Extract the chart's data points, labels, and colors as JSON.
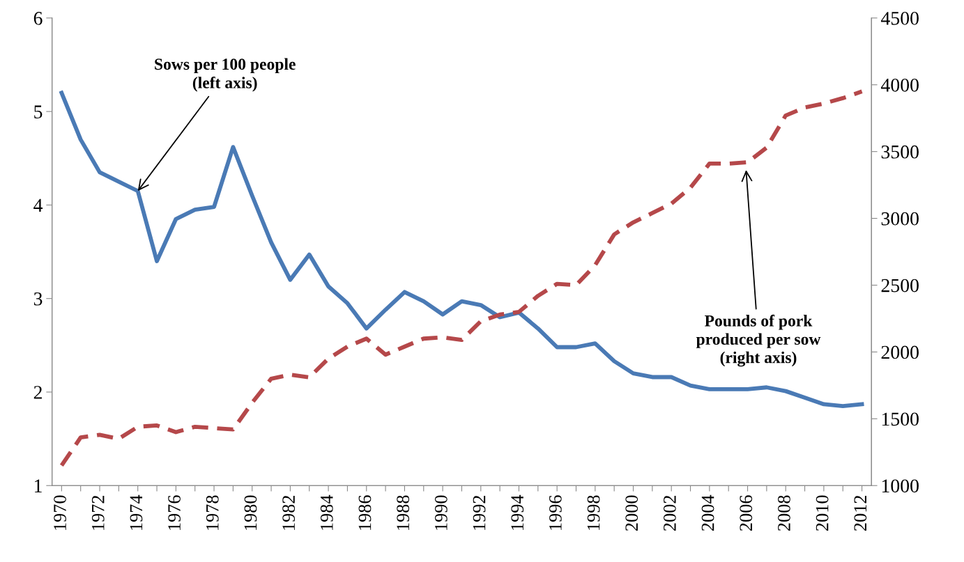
{
  "chart_data": {
    "type": "line",
    "categories": [
      "1970",
      null,
      "1972",
      null,
      "1974",
      null,
      "1976",
      null,
      "1978",
      null,
      "1980",
      null,
      "1982",
      null,
      "1984",
      null,
      "1986",
      null,
      "1988",
      null,
      "1990",
      null,
      "1992",
      null,
      "1994",
      null,
      "1996",
      null,
      "1998",
      null,
      "2000",
      null,
      "2002",
      null,
      "2004",
      null,
      "2006",
      null,
      "2008",
      null,
      "2010",
      null,
      "2012"
    ],
    "series": [
      {
        "color": "#4a7ab5",
        "line_style": "solid",
        "values": [
          5.2,
          4.7,
          4.35,
          4.25,
          4.15,
          3.4,
          3.85,
          3.95,
          3.98,
          4.62,
          4.1,
          3.6,
          3.2,
          3.47,
          3.13,
          2.95,
          2.68,
          2.88,
          3.07,
          2.97,
          2.83,
          2.97,
          2.93,
          2.8,
          2.85,
          2.68,
          2.48,
          2.48,
          2.52,
          2.33,
          2.2,
          2.16,
          2.16,
          2.07,
          2.03,
          2.03,
          2.03,
          2.05,
          2.01,
          1.94,
          1.87,
          1.85,
          1.87
        ]
      },
      {
        "color": "#b5484a",
        "line_style": "dashed",
        "axis": "y2",
        "values": [
          1150,
          1360,
          1380,
          1350,
          1440,
          1450,
          1400,
          1440,
          1430,
          1420,
          1620,
          1800,
          1830,
          1810,
          1950,
          2040,
          2100,
          1980,
          2040,
          2100,
          2110,
          2090,
          2230,
          2280,
          2300,
          2420,
          2510,
          2500,
          2650,
          2880,
          2970,
          3040,
          3110,
          3230,
          3410,
          3410,
          3420,
          3530,
          3770,
          3830,
          3860,
          3900,
          3950
        ]
      }
    ],
    "ylim": [
      1,
      6
    ],
    "yticks": [
      1,
      2,
      3,
      4,
      5,
      6
    ],
    "y2lim": [
      1000,
      4500
    ],
    "y2ticks": [
      1000,
      1500,
      2000,
      2500,
      3000,
      3500,
      4000,
      4500
    ],
    "grid": false,
    "marker": "none",
    "annotations": [
      {
        "text": "Sows per 100 people\n(left axis)",
        "x": "1974",
        "y": 4.15
      },
      "Pounds of pork\nproduced per sow\n(right axis)"
    ]
  }
}
